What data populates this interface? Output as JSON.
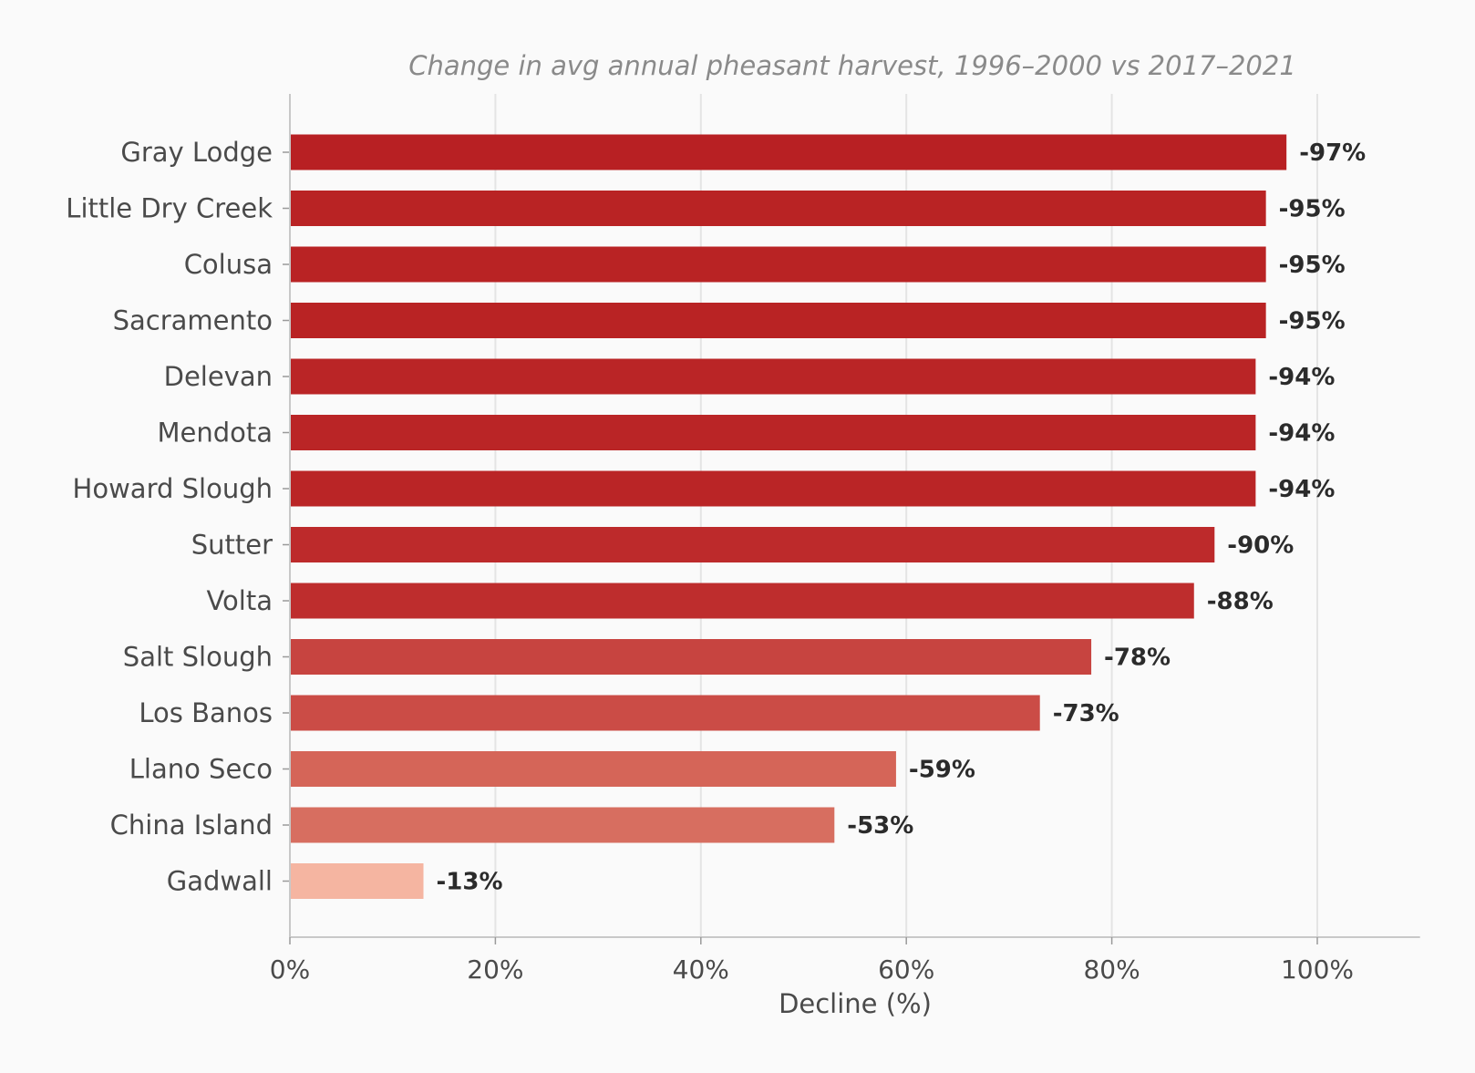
{
  "chart_data": {
    "type": "bar",
    "orientation": "horizontal",
    "title": "Change in avg annual pheasant harvest, 1996–2000 vs 2017–2021",
    "xlabel": "Decline (%)",
    "ylabel": "",
    "xlim": [
      0,
      110
    ],
    "xticks": [
      0,
      20,
      40,
      60,
      80,
      100
    ],
    "xtick_labels": [
      "0%",
      "20%",
      "40%",
      "60%",
      "80%",
      "100%"
    ],
    "grid": "vertical",
    "categories": [
      "Gray Lodge",
      "Little Dry Creek",
      "Colusa",
      "Sacramento",
      "Delevan",
      "Mendota",
      "Howard Slough",
      "Sutter",
      "Volta",
      "Salt Slough",
      "Los Banos",
      "Llano Seco",
      "China Island",
      "Gadwall"
    ],
    "values": [
      97,
      95,
      95,
      95,
      94,
      94,
      94,
      90,
      88,
      78,
      73,
      59,
      53,
      13
    ],
    "value_labels": [
      "-97%",
      "-95%",
      "-95%",
      "-95%",
      "-94%",
      "-94%",
      "-94%",
      "-90%",
      "-88%",
      "-78%",
      "-73%",
      "-59%",
      "-53%",
      "-13%"
    ],
    "bar_colors": [
      "#b82023",
      "#b92324",
      "#b92324",
      "#b92324",
      "#ba2526",
      "#ba2526",
      "#ba2526",
      "#bd2a2b",
      "#be2d2d",
      "#c74440",
      "#cb4c46",
      "#d56558",
      "#d76e60",
      "#f5b5a1"
    ]
  }
}
